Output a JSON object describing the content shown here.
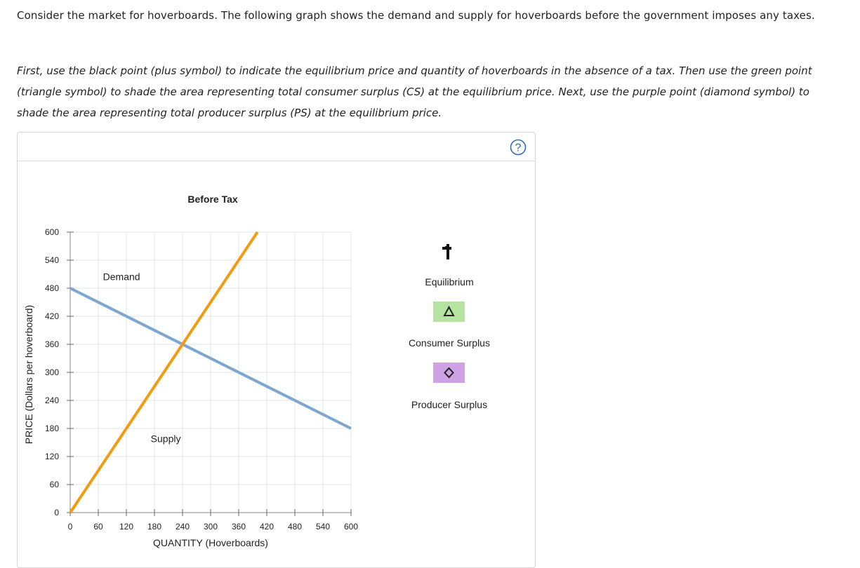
{
  "intro_text": "Consider the market for hoverboards. The following graph shows the demand and supply for hoverboards before the government imposes any taxes.",
  "instructions_text": "First, use the black point (plus symbol) to indicate the equilibrium price and quantity of hoverboards in the absence of a tax. Then use the green point (triangle symbol) to shade the area representing total consumer surplus (CS) at the equilibrium price. Next, use the purple point (diamond symbol) to shade the area representing total producer surplus (PS) at the equilibrium price.",
  "help_icon": "question-circle-icon",
  "colors": {
    "demand": "#7ba7d2",
    "supply": "#f39c12",
    "cs_fill": "#b5e3a2",
    "ps_fill": "#cfa2e6",
    "help": "#2a6ebb"
  },
  "legend": {
    "equilibrium_label": "Equilibrium",
    "consumer_surplus_label": "Consumer Surplus",
    "producer_surplus_label": "Producer Surplus"
  },
  "chart_data": {
    "type": "line",
    "title": "Before Tax",
    "xlabel": "QUANTITY (Hoverboards)",
    "ylabel": "PRICE (Dollars per hoverboard)",
    "xlim": [
      0,
      600
    ],
    "ylim": [
      0,
      600
    ],
    "xticks": [
      0,
      60,
      120,
      180,
      240,
      300,
      360,
      420,
      480,
      540,
      600
    ],
    "yticks": [
      0,
      60,
      120,
      180,
      240,
      300,
      360,
      420,
      480,
      540,
      600
    ],
    "grid": true,
    "series": [
      {
        "name": "Demand",
        "x": [
          0,
          600
        ],
        "y": [
          480,
          180
        ]
      },
      {
        "name": "Supply",
        "x": [
          0,
          400
        ],
        "y": [
          0,
          600
        ]
      }
    ]
  }
}
